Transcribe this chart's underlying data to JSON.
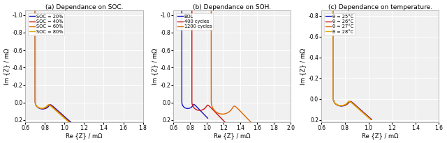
{
  "fig_width": 6.4,
  "fig_height": 2.06,
  "dpi": 100,
  "background": "#ffffff",
  "subplots": [
    {
      "title": "(a) Dependance on SOC.",
      "xlabel": "Re {Z} / mΩ",
      "ylabel": "Im {Z} / mΩ",
      "xlim": [
        0.6,
        1.8
      ],
      "ylim": [
        0.22,
        -1.05
      ],
      "xticks": [
        0.6,
        0.8,
        1.0,
        1.2,
        1.4,
        1.6,
        1.8
      ],
      "yticks": [
        -1.0,
        -0.8,
        -0.6,
        -0.4,
        -0.2,
        0.0,
        0.2
      ],
      "series": [
        {
          "label": "SOC = 20%",
          "color": "#1414cc"
        },
        {
          "label": "SOC = 40%",
          "color": "#cc1414"
        },
        {
          "label": "SOC = 60%",
          "color": "#dd6600"
        },
        {
          "label": "SOC = 80%",
          "color": "#ddaa00"
        }
      ]
    },
    {
      "title": "(b) Dependance on SOH.",
      "xlabel": "Re {Z} / mΩ",
      "ylabel": "Im {Z} / mΩ",
      "xlim": [
        0.6,
        2.0
      ],
      "ylim": [
        0.22,
        -1.05
      ],
      "xticks": [
        0.6,
        0.8,
        1.0,
        1.2,
        1.4,
        1.6,
        1.8,
        2.0
      ],
      "yticks": [
        -1.0,
        -0.8,
        -0.6,
        -0.4,
        -0.2,
        0.0,
        0.2
      ],
      "series": [
        {
          "label": "BOL",
          "color": "#1414cc"
        },
        {
          "label": "400 cycles",
          "color": "#cc1414"
        },
        {
          "label": "1200 cycles",
          "color": "#dd6600"
        }
      ]
    },
    {
      "title": "(c) Dependance on temperature.",
      "xlabel": "Re {Z} / mΩ",
      "ylabel": "Im {Z} / mΩ",
      "xlim": [
        0.6,
        1.6
      ],
      "ylim": [
        0.22,
        -0.85
      ],
      "xticks": [
        0.6,
        0.8,
        1.0,
        1.2,
        1.4,
        1.6
      ],
      "yticks": [
        -0.8,
        -0.6,
        -0.4,
        -0.2,
        0.0,
        0.2
      ],
      "series": [
        {
          "label": "θ = 25°C",
          "color": "#1414cc"
        },
        {
          "label": "θ = 26°C",
          "color": "#cc1414"
        },
        {
          "label": "θ = 27°C",
          "color": "#dd6600"
        },
        {
          "label": "θ = 28°C",
          "color": "#ddaa00"
        }
      ]
    }
  ]
}
